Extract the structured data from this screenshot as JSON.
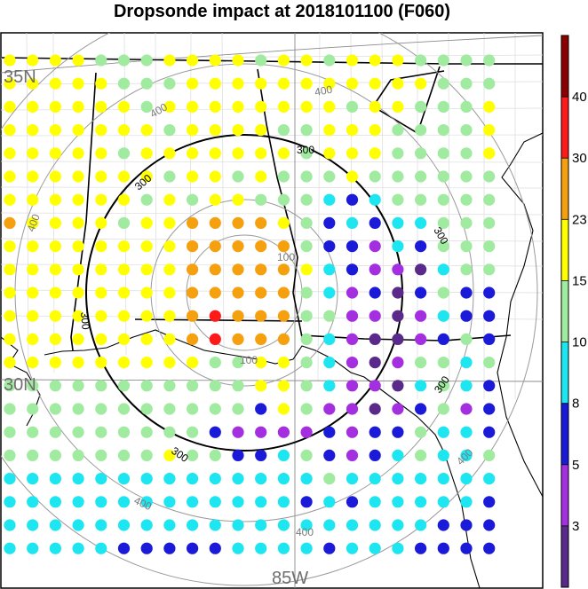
{
  "title": "Dropsonde impact at 2018101100 (F060)",
  "labels": {
    "lat_35": "35N",
    "lat_30": "30N",
    "lon_85": "85W"
  },
  "colorbar": {
    "tick_labels": [
      "3",
      "5",
      "8",
      "10",
      "15",
      "23",
      "30",
      "40"
    ],
    "bands": [
      {
        "from": 0,
        "to": 3,
        "color": "#5a2a8a"
      },
      {
        "from": 3,
        "to": 5,
        "color": "#a32fe0"
      },
      {
        "from": 5,
        "to": 8,
        "color": "#1a1ad8"
      },
      {
        "from": 8,
        "to": 10,
        "color": "#1ee6f0"
      },
      {
        "from": 10,
        "to": 15,
        "color": "#a0eba0"
      },
      {
        "from": 15,
        "to": 23,
        "color": "#ffff00"
      },
      {
        "from": 23,
        "to": 30,
        "color": "#f5a00f"
      },
      {
        "from": 30,
        "to": 40,
        "color": "#ff1a1a"
      },
      {
        "from": 40,
        "to": 50,
        "color": "#8b0000"
      }
    ]
  },
  "rings": {
    "gray_labels": [
      "100",
      "100",
      "400",
      "400",
      "400",
      "400",
      "400",
      "400"
    ],
    "black_labels": [
      "300",
      "300",
      "300",
      "300",
      "300",
      "300"
    ]
  },
  "colors": {
    "purple_dark": "#5a2a8a",
    "purple": "#a32fe0",
    "blue": "#1a1ad8",
    "cyan": "#1ee6f0",
    "green": "#a0eba0",
    "yellow": "#ffff00",
    "orange": "#f5a00f",
    "red": "#ff1a1a"
  },
  "chart_data": {
    "type": "scatter",
    "title": "Dropsonde impact at 2018101100 (F060)",
    "legend": "colorbar-right",
    "grid_rows": [
      "YYYYGGGYYYYGYYGYYYGGGG",
      "YYYYYGGGYYYYYYYYYYYGGG",
      "YYYYYYGYYYYYYYYGYYGGGY",
      "YYYYYYYGYYYYGGYYYGGGGY",
      "YYYYYGYYYYYYYGYYYGGGGY",
      "YYYYYYYGYYGYGGGYGGGGGG",
      "YYYYYYGYGYYGGGCBCGGGGG",
      "OYYYYGYYOOOOYGBCBCCGGG",
      "YYYYYYYYOOOOOGBBPCBGGG",
      "YYYYYYYYOOOOOYCBPPDCGG",
      "YYYYYYYYOOOOOGCPBDBGBB",
      "YYYYYYYYOROOOGGPPDPCBB",
      "YYYYYYYYOROOOGCPDDPBGB",
      "YYYYYYYYYGGYYGCPDPGGCG",
      "GGGGGGGGGGGYYGCPPDCGCB",
      "GGGGGGGGGGGBYGPPDPBGPB",
      "GGGGGGGGGBPPPPBPBBGCCB",
      "GGGGGGGYGGBBCGBPBCGCCG",
      "CCCCCCCCCCCCCCGCCCCCCC",
      "CCCCCCCCCCCCCBCBCCCCCB",
      "CCCCCCCCCCCCCCCCCCCBBB",
      "CCCCCBBBBBCCCCBCCCBBBB"
    ],
    "grid_row_codes": {
      "P": "3-5",
      "D": "0-3",
      "B": "5-8",
      "C": "8-10",
      "G": "10-15",
      "Y": "15-23",
      "O": "23-30",
      "R": "30-40"
    }
  }
}
